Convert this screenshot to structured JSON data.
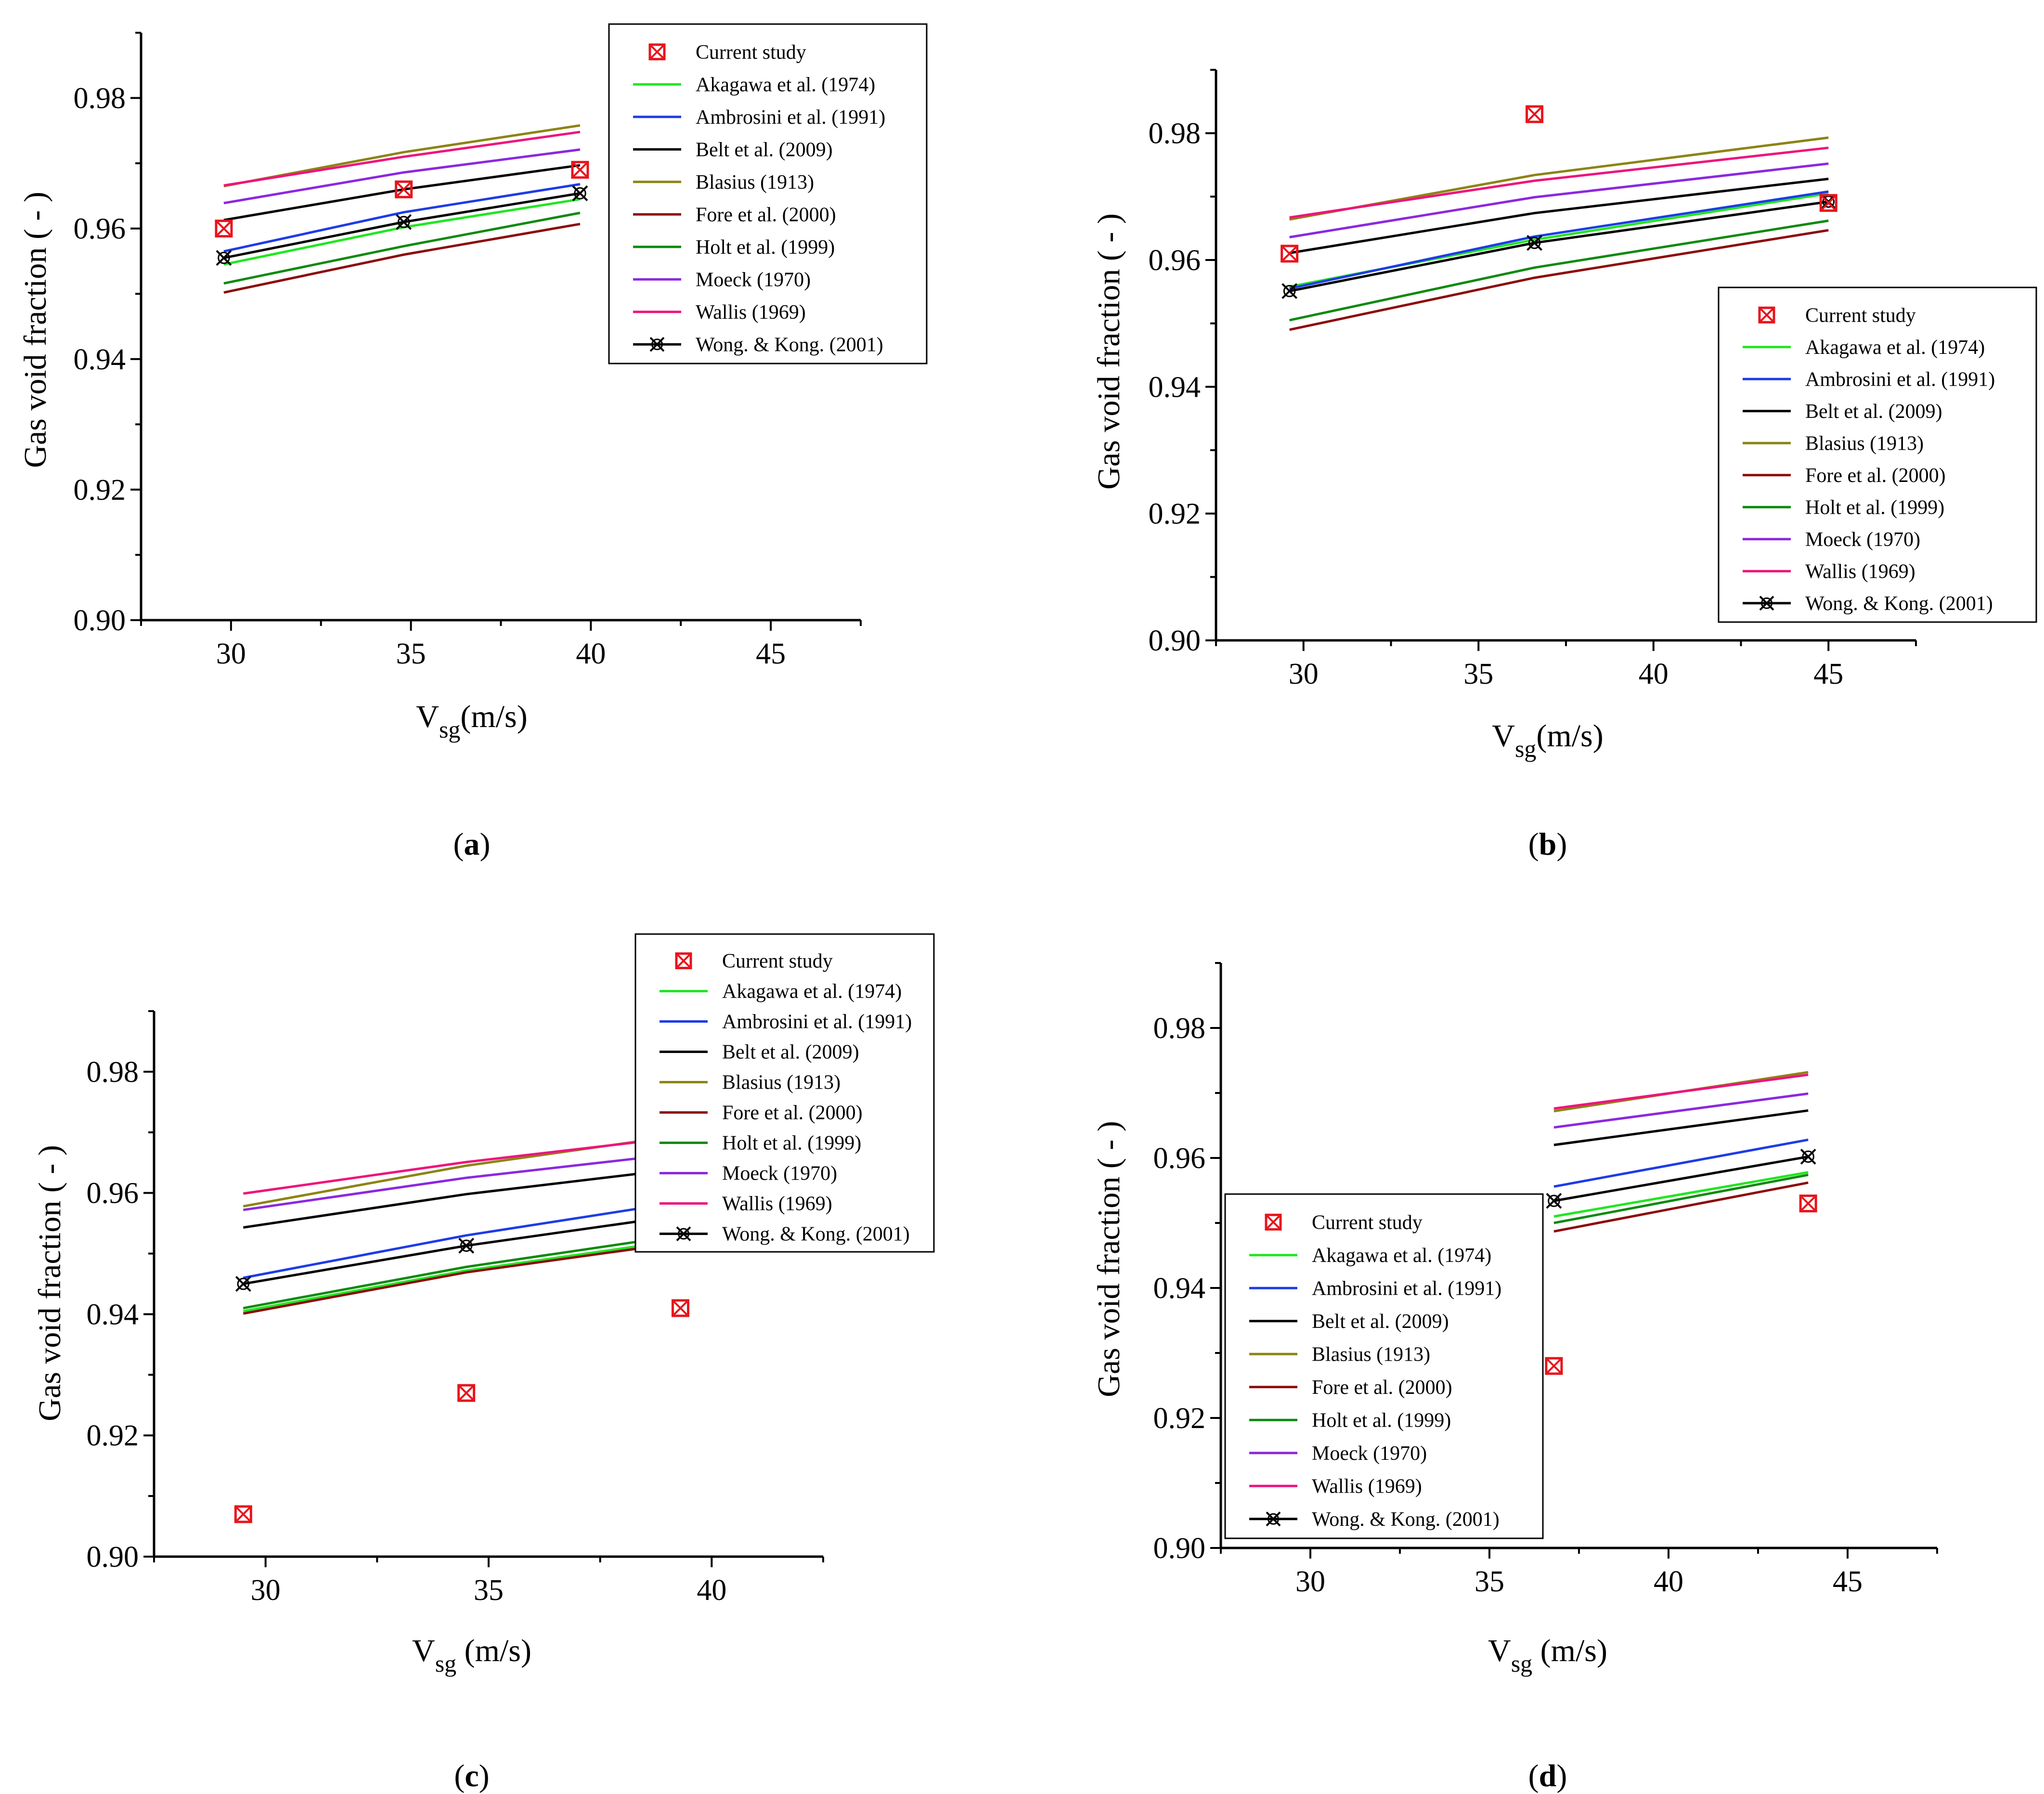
{
  "colors": {
    "Current study": "#e8141c",
    "Akagawa et al. (1974)": "#22e622",
    "Ambrosini et al. (1991)": "#1e3ce6",
    "Belt et al. (2009)": "#000000",
    "Blasius (1913)": "#8c8414",
    "Fore et al. (2000)": "#8c0a0a",
    "Holt et al. (1999)": "#0e8a0e",
    "Moeck (1970)": "#8c28e0",
    "Wallis (1969)": "#ee147c",
    "Wong. & Kong. (2001)": "#000000"
  },
  "chart_data": [
    {
      "type": "line",
      "caption_letter": "a",
      "xlabel_main": "V",
      "xlabel_sub": "sg",
      "xlabel_rest": "(m/s)",
      "ylabel": "Gas void fraction ( - )",
      "xlim": [
        27.5,
        47.5
      ],
      "ylim": [
        0.9,
        0.99
      ],
      "xticks": [
        "30",
        "35",
        "40",
        "45"
      ],
      "yticks": [
        "0.90",
        "0.92",
        "0.94",
        "0.96",
        "0.98"
      ],
      "legend": [
        "Current study",
        "Akagawa et al. (1974)",
        "Ambrosini et al. (1991)",
        "Belt et al. (2009)",
        "Blasius (1913)",
        "Fore et al. (2000)",
        "Holt et al. (1999)",
        "Moeck (1970)",
        "Wallis (1969)",
        "Wong. & Kong. (2001)"
      ],
      "legend_position": "top-right",
      "x": [
        29.8,
        34.8,
        39.7
      ],
      "scatter": {
        "name": "Current study",
        "values": [
          0.96,
          0.966,
          0.969
        ]
      },
      "series": [
        {
          "name": "Akagawa et al. (1974)",
          "values": [
            0.9545,
            0.9602,
            0.9645
          ]
        },
        {
          "name": "Ambrosini et al. (1991)",
          "values": [
            0.9565,
            0.9625,
            0.9668
          ]
        },
        {
          "name": "Belt et al. (2009)",
          "values": [
            0.9613,
            0.966,
            0.9697
          ]
        },
        {
          "name": "Blasius (1913)",
          "values": [
            0.9665,
            0.9717,
            0.9758
          ]
        },
        {
          "name": "Fore et al. (2000)",
          "values": [
            0.9502,
            0.956,
            0.9607
          ]
        },
        {
          "name": "Holt et al. (1999)",
          "values": [
            0.9516,
            0.9573,
            0.9624
          ]
        },
        {
          "name": "Moeck (1970)",
          "values": [
            0.9639,
            0.9686,
            0.9721
          ]
        },
        {
          "name": "Wallis (1969)",
          "values": [
            0.9666,
            0.971,
            0.9748
          ]
        },
        {
          "name": "Wong. & Kong. (2001)",
          "values": [
            0.9555,
            0.961,
            0.9654
          ]
        }
      ]
    },
    {
      "type": "line",
      "caption_letter": "b",
      "xlabel_main": "V",
      "xlabel_sub": "sg",
      "xlabel_rest": "(m/s)",
      "ylabel": "Gas void fraction ( - )",
      "xlim": [
        27.5,
        47.5
      ],
      "ylim": [
        0.9,
        0.99
      ],
      "xticks": [
        "30",
        "35",
        "40",
        "45"
      ],
      "yticks": [
        "0.90",
        "0.92",
        "0.94",
        "0.96",
        "0.98"
      ],
      "legend": [
        "Current study",
        "Akagawa et al. (1974)",
        "Ambrosini et al. (1991)",
        "Belt et al. (2009)",
        "Blasius (1913)",
        "Fore et al. (2000)",
        "Holt et al. (1999)",
        "Moeck (1970)",
        "Wallis (1969)",
        "Wong. & Kong. (2001)"
      ],
      "legend_position": "right",
      "x": [
        29.6,
        36.6,
        45.0
      ],
      "scatter": {
        "name": "Current study",
        "values": [
          0.961,
          0.983,
          0.969
        ]
      },
      "series": [
        {
          "name": "Akagawa et al. (1974)",
          "values": [
            0.9558,
            0.9632,
            0.9705
          ]
        },
        {
          "name": "Ambrosini et al. (1991)",
          "values": [
            0.9555,
            0.9637,
            0.9708
          ]
        },
        {
          "name": "Belt et al. (2009)",
          "values": [
            0.9611,
            0.9674,
            0.9728
          ]
        },
        {
          "name": "Blasius (1913)",
          "values": [
            0.9664,
            0.9734,
            0.9793
          ]
        },
        {
          "name": "Fore et al. (2000)",
          "values": [
            0.949,
            0.9572,
            0.9647
          ]
        },
        {
          "name": "Holt et al. (1999)",
          "values": [
            0.9505,
            0.9588,
            0.9662
          ]
        },
        {
          "name": "Moeck (1970)",
          "values": [
            0.9636,
            0.9699,
            0.9752
          ]
        },
        {
          "name": "Wallis (1969)",
          "values": [
            0.9667,
            0.9725,
            0.9777
          ]
        },
        {
          "name": "Wong. & Kong. (2001)",
          "values": [
            0.9551,
            0.9627,
            0.9692
          ]
        }
      ]
    },
    {
      "type": "line",
      "caption_letter": "c",
      "xlabel_main": "V",
      "xlabel_sub": "sg",
      "xlabel_rest": " (m/s)",
      "ylabel": "Gas void fraction ( - )",
      "xlim": [
        27.5,
        42.5
      ],
      "ylim": [
        0.9,
        0.99
      ],
      "xticks": [
        "30",
        "35",
        "40"
      ],
      "yticks": [
        "0.90",
        "0.92",
        "0.94",
        "0.96",
        "0.98"
      ],
      "legend": [
        "Current study",
        "Akagawa et al. (1974)",
        "Ambrosini et al. (1991)",
        "Belt et al. (2009)",
        "Blasius (1913)",
        "Fore et al. (2000)",
        "Holt et al. (1999)",
        "Moeck (1970)",
        "Wallis (1969)",
        "Wong. & Kong. (2001)"
      ],
      "legend_position": "top-right",
      "x": [
        29.5,
        34.5,
        39.3
      ],
      "scatter": {
        "name": "Current study",
        "values": [
          0.907,
          0.927,
          0.941
        ]
      },
      "series": [
        {
          "name": "Akagawa et al. (1974)",
          "values": [
            0.9405,
            0.9472,
            0.9522
          ]
        },
        {
          "name": "Ambrosini et al. (1991)",
          "values": [
            0.946,
            0.953,
            0.9585
          ]
        },
        {
          "name": "Belt et al. (2009)",
          "values": [
            0.9543,
            0.9598,
            0.964
          ]
        },
        {
          "name": "Blasius (1913)",
          "values": [
            0.9578,
            0.9645,
            0.9695
          ]
        },
        {
          "name": "Fore et al. (2000)",
          "values": [
            0.9401,
            0.9469,
            0.9518
          ]
        },
        {
          "name": "Holt et al. (1999)",
          "values": [
            0.941,
            0.9478,
            0.953
          ]
        },
        {
          "name": "Moeck (1970)",
          "values": [
            0.9572,
            0.9625,
            0.9665
          ]
        },
        {
          "name": "Wallis (1969)",
          "values": [
            0.9599,
            0.9651,
            0.9692
          ]
        },
        {
          "name": "Wong. & Kong. (2001)",
          "values": [
            0.945,
            0.9513,
            0.9563
          ]
        }
      ]
    },
    {
      "type": "line",
      "caption_letter": "d",
      "xlabel_main": "V",
      "xlabel_sub": "sg",
      "xlabel_rest": " (m/s)",
      "ylabel": "Gas void fraction ( - )",
      "xlim": [
        27.5,
        47.5
      ],
      "ylim": [
        0.9,
        0.99
      ],
      "xticks": [
        "30",
        "35",
        "40",
        "45"
      ],
      "yticks": [
        "0.90",
        "0.92",
        "0.94",
        "0.96",
        "0.98"
      ],
      "legend": [
        "Current study",
        "Akagawa et al. (1974)",
        "Ambrosini et al. (1991)",
        "Belt et al. (2009)",
        "Blasius (1913)",
        "Fore et al. (2000)",
        "Holt et al. (1999)",
        "Moeck (1970)",
        "Wallis (1969)",
        "Wong. & Kong. (2001)"
      ],
      "legend_position": "bottom-left",
      "x": [
        36.8,
        43.9
      ],
      "scatter": {
        "name": "Current study",
        "values": [
          0.928,
          0.953
        ]
      },
      "series": [
        {
          "name": "Akagawa et al. (1974)",
          "values": [
            0.951,
            0.9578
          ]
        },
        {
          "name": "Ambrosini et al. (1991)",
          "values": [
            0.9556,
            0.9628
          ]
        },
        {
          "name": "Belt et al. (2009)",
          "values": [
            0.962,
            0.9673
          ]
        },
        {
          "name": "Blasius (1913)",
          "values": [
            0.9672,
            0.9732
          ]
        },
        {
          "name": "Fore et al. (2000)",
          "values": [
            0.9487,
            0.9562
          ]
        },
        {
          "name": "Holt et al. (1999)",
          "values": [
            0.95,
            0.9574
          ]
        },
        {
          "name": "Moeck (1970)",
          "values": [
            0.9647,
            0.9699
          ]
        },
        {
          "name": "Wallis (1969)",
          "values": [
            0.9676,
            0.9728
          ]
        },
        {
          "name": "Wong. & Kong. (2001)",
          "values": [
            0.9534,
            0.9602
          ]
        }
      ]
    }
  ]
}
